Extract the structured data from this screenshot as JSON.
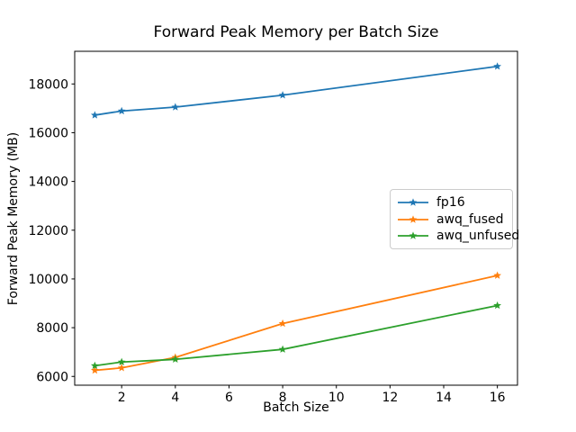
{
  "chart_data": {
    "type": "line",
    "title": "Forward Peak Memory per Batch Size",
    "xlabel": "Batch Size",
    "ylabel": "Forward Peak Memory (MB)",
    "x": [
      1,
      2,
      4,
      8,
      16
    ],
    "series": [
      {
        "name": "fp16",
        "color": "#1f77b4",
        "marker": "star",
        "values": [
          16720,
          16890,
          17050,
          17540,
          18720
        ]
      },
      {
        "name": "awq_fused",
        "color": "#ff7f0e",
        "marker": "star",
        "values": [
          6250,
          6350,
          6780,
          8170,
          10140
        ]
      },
      {
        "name": "awq_unfused",
        "color": "#2ca02c",
        "marker": "star",
        "values": [
          6440,
          6590,
          6700,
          7110,
          8910
        ]
      }
    ],
    "xticks": [
      2,
      4,
      6,
      8,
      10,
      12,
      14,
      16
    ],
    "yticks": [
      6000,
      8000,
      10000,
      12000,
      14000,
      16000,
      18000
    ],
    "xlim": [
      0.25,
      16.75
    ],
    "ylim": [
      5640,
      19340
    ],
    "grid": false,
    "legend": {
      "position": "center-right",
      "entries": [
        "fp16",
        "awq_fused",
        "awq_unfused"
      ]
    },
    "background": "#ffffff",
    "axis_color": "#000000"
  }
}
